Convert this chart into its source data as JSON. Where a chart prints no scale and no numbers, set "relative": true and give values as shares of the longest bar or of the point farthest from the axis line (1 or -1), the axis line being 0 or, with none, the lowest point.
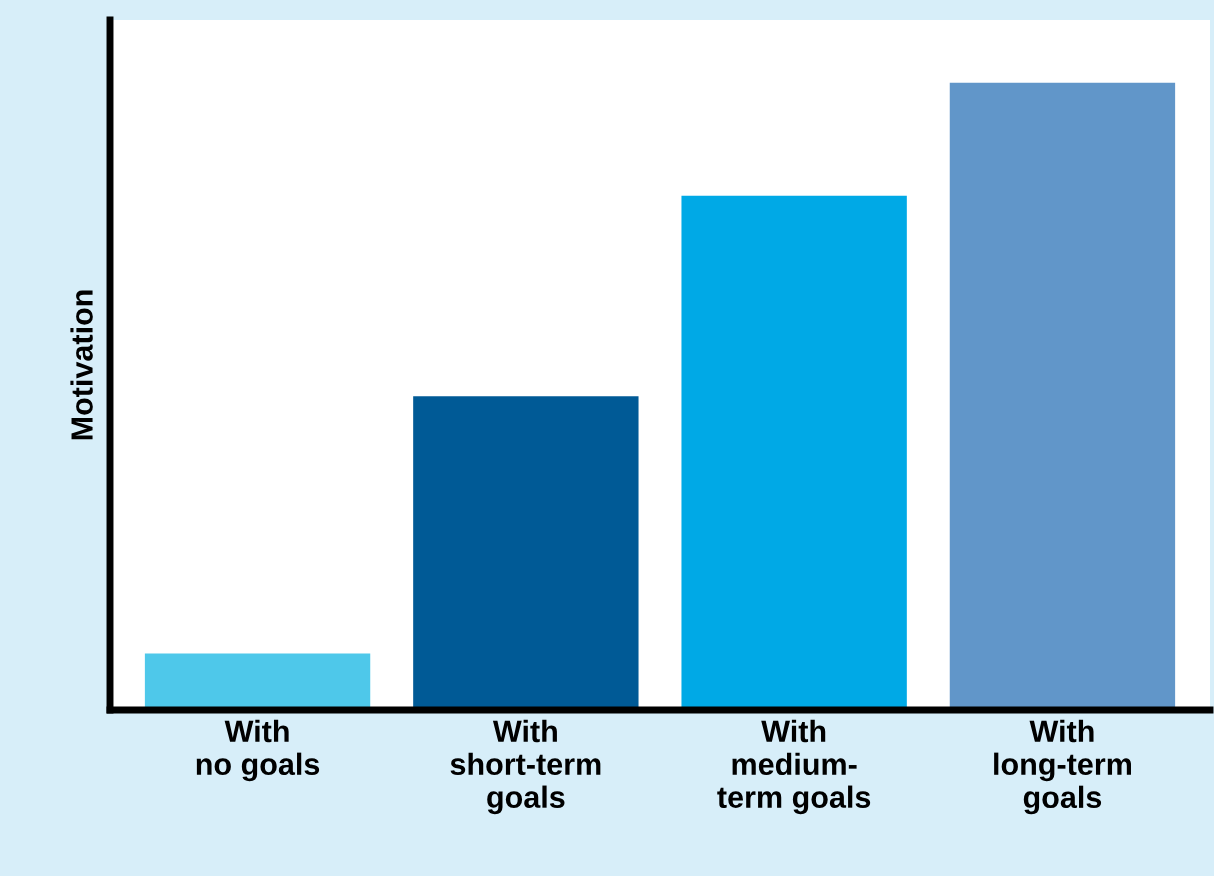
{
  "chart_data": {
    "type": "bar",
    "ylabel": "Motivation",
    "relative": true,
    "categories": [
      "With\nno goals",
      "With\nshort-term\ngoals",
      "With\nmedium-\nterm goals",
      "With\nlong-term\ngoals"
    ],
    "values": [
      0.09,
      0.5,
      0.82,
      1
    ],
    "colors": [
      "#4ec8ea",
      "#005a96",
      "#00a9e6",
      "#6196c9"
    ],
    "grid": false,
    "legend": false
  }
}
